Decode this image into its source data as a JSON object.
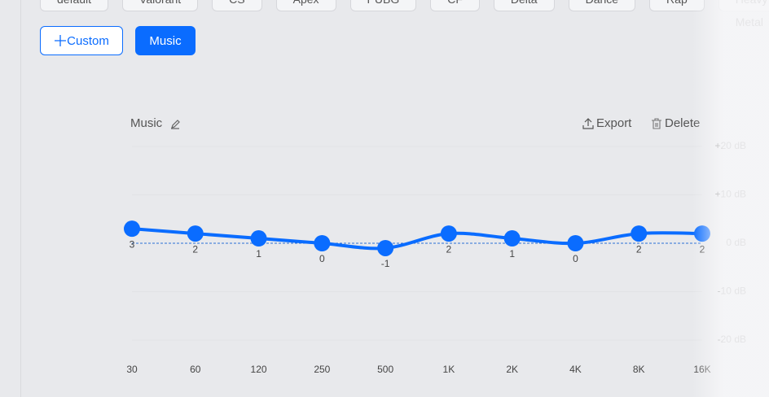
{
  "presets": [
    "default",
    "Valorant",
    "CS",
    "Apex",
    "PUBG",
    "CF",
    "Delta",
    "Dance",
    "Rap",
    "Heavy Metal"
  ],
  "tabs": [
    "Custom",
    "Music"
  ],
  "actions": {
    "export": "Export",
    "delete": "Delete"
  },
  "chart_data": {
    "type": "line",
    "title": "Music",
    "categories": [
      "30",
      "60",
      "120",
      "250",
      "500",
      "1K",
      "2K",
      "4K",
      "8K",
      "16K"
    ],
    "series": [
      {
        "color": "#0a6cff",
        "values": [
          3,
          2,
          1,
          0,
          -1,
          2,
          1,
          0,
          2,
          2
        ]
      }
    ],
    "ylim": [
      -20,
      20
    ],
    "yticks": [
      {
        "value": 20,
        "label": "+20 dB"
      },
      {
        "value": 10,
        "label": "+10 dB"
      },
      {
        "value": 0,
        "label": "0 dB"
      },
      {
        "value": -10,
        "label": "-10 dB"
      },
      {
        "value": -20,
        "label": "-20 dB"
      }
    ]
  }
}
